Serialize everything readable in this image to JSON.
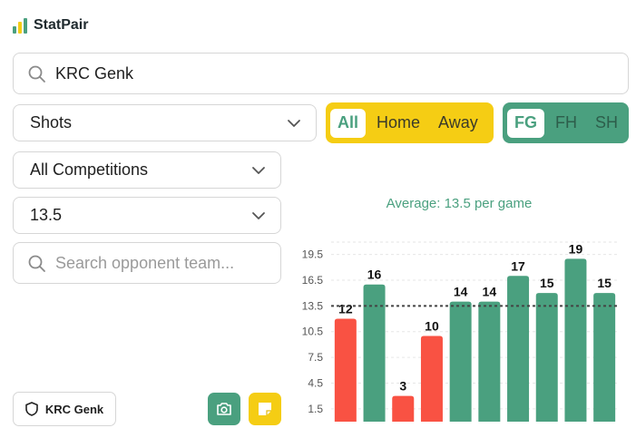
{
  "app": {
    "name": "StatPair"
  },
  "search": {
    "value": "KRC Genk"
  },
  "stat_select": {
    "value": "Shots"
  },
  "venue_filter": {
    "options": [
      "All",
      "Home",
      "Away"
    ],
    "selected": "All"
  },
  "period_filter": {
    "options": [
      "FG",
      "FH",
      "SH"
    ],
    "selected": "FG"
  },
  "competition_select": {
    "value": "All Competitions"
  },
  "line_select": {
    "value": "13.5"
  },
  "opponent_search": {
    "placeholder": "Search opponent team..."
  },
  "team_chip": {
    "label": "KRC Genk"
  },
  "colors": {
    "accent": "#4aa07f",
    "yellow": "#f5cd14",
    "over": "#4aa07f",
    "under": "#f95243"
  },
  "chart_data": {
    "type": "bar",
    "title": "Average: 13.5 per game",
    "values": [
      12,
      16,
      3,
      10,
      14,
      14,
      17,
      15,
      19,
      15
    ],
    "yticks": [
      1.5,
      4.5,
      7.5,
      10.5,
      13.5,
      16.5,
      19.5
    ],
    "line": 13.5,
    "ylim": [
      0,
      22
    ]
  }
}
